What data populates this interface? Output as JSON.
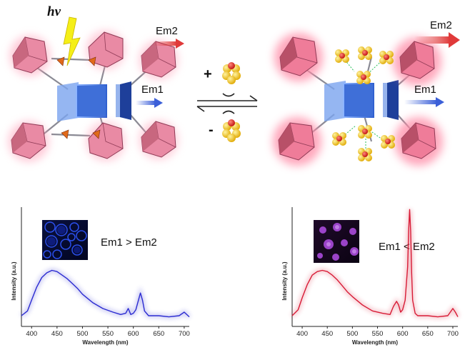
{
  "scheme": {
    "photon_label": "hν",
    "left_em2": "Em2",
    "left_em1": "Em1",
    "right_em2": "Em2",
    "right_em1": "Em1",
    "plus_sign": "+",
    "minus_sign": "-",
    "colors": {
      "polyhedron": "#e98aa4",
      "framework_blue": "#3a6fd6",
      "em1_arrow": "#3b5fd8",
      "em2_arrow": "#e03a3a",
      "guest_atom": "#f2c81b",
      "guest_center": "#d81d12",
      "lightning": "#f5ef18"
    }
  },
  "chart_data": [
    {
      "type": "line",
      "panel": "left",
      "annotation": "Em1 > Em2",
      "xlabel": "Wavelength (nm)",
      "ylabel": "Intensity (a.u.)",
      "xlim": [
        380,
        710
      ],
      "ylim": [
        0,
        1
      ],
      "xticks": [
        "400",
        "450",
        "500",
        "550",
        "600",
        "650",
        "700"
      ],
      "line_color": "#2b2bd1",
      "inset_image": "blue-luminescence-micrograph",
      "x": [
        380,
        392,
        400,
        410,
        420,
        430,
        440,
        450,
        460,
        470,
        480,
        490,
        500,
        520,
        540,
        560,
        575,
        585,
        590,
        595,
        600,
        605,
        610,
        614,
        618,
        622,
        630,
        650,
        670,
        690,
        700,
        705,
        710
      ],
      "y": [
        0.09,
        0.13,
        0.22,
        0.33,
        0.41,
        0.45,
        0.47,
        0.46,
        0.43,
        0.4,
        0.36,
        0.32,
        0.27,
        0.2,
        0.15,
        0.12,
        0.1,
        0.11,
        0.15,
        0.1,
        0.11,
        0.14,
        0.22,
        0.28,
        0.22,
        0.13,
        0.09,
        0.09,
        0.08,
        0.09,
        0.12,
        0.1,
        0.08
      ]
    },
    {
      "type": "line",
      "panel": "right",
      "annotation": "Em1 < Em2",
      "xlabel": "Wavelength (nm)",
      "ylabel": "Intensity (a.u.)",
      "xlim": [
        380,
        710
      ],
      "ylim": [
        0,
        1
      ],
      "xticks": [
        "400",
        "450",
        "500",
        "550",
        "600",
        "650",
        "700"
      ],
      "line_color": "#d81b36",
      "inset_image": "purple-luminescence-micrograph",
      "x": [
        380,
        392,
        400,
        410,
        420,
        430,
        440,
        450,
        460,
        470,
        480,
        490,
        500,
        520,
        540,
        560,
        575,
        582,
        588,
        592,
        596,
        600,
        605,
        610,
        612,
        614,
        616,
        618,
        620,
        625,
        630,
        650,
        670,
        690,
        700,
        705,
        710
      ],
      "y": [
        0.09,
        0.14,
        0.24,
        0.35,
        0.43,
        0.46,
        0.47,
        0.46,
        0.43,
        0.39,
        0.34,
        0.29,
        0.25,
        0.18,
        0.13,
        0.11,
        0.1,
        0.17,
        0.21,
        0.18,
        0.12,
        0.14,
        0.22,
        0.5,
        0.8,
        0.98,
        0.8,
        0.45,
        0.22,
        0.11,
        0.09,
        0.09,
        0.08,
        0.09,
        0.15,
        0.12,
        0.08
      ]
    }
  ]
}
